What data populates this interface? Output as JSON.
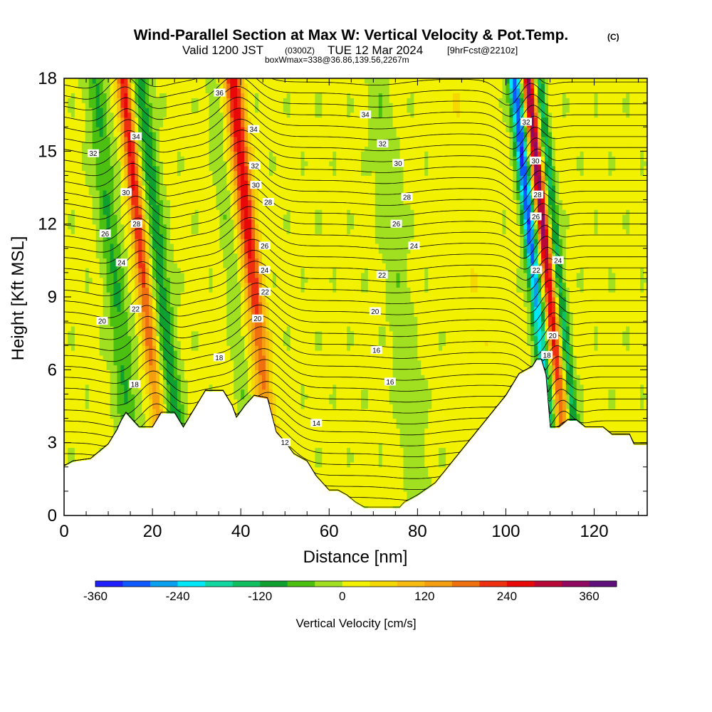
{
  "chart_data": {
    "type": "heatmap",
    "title": "Wind-Parallel Section at Max W: Vertical Velocity & Pot.Temp.",
    "title_mark": "(C)",
    "subtitle_valid": "Valid 1200 JST",
    "subtitle_utc": "(0300Z)",
    "subtitle_date": "TUE 12 Mar 2024",
    "subtitle_fcst": "[9hrFcst@2210z]",
    "subtitle_box": "boxWmax=338@36.86,139.56,2267m",
    "xlabel": "Distance [nm]",
    "ylabel": "Height [Kft MSL]",
    "xlim": [
      0,
      132
    ],
    "ylim": [
      0,
      18
    ],
    "x_ticks": [
      "0",
      "20",
      "40",
      "60",
      "80",
      "100",
      "120"
    ],
    "y_ticks": [
      "0",
      "3",
      "6",
      "9",
      "12",
      "15",
      "18"
    ],
    "colorbar": {
      "label": "Vertical Velocity [cm/s]",
      "ticks": [
        "-360",
        "-240",
        "-120",
        "0",
        "120",
        "240",
        "360"
      ],
      "levels": [
        -360,
        -320,
        -280,
        -240,
        -200,
        -160,
        -120,
        -80,
        -40,
        0,
        40,
        80,
        120,
        160,
        200,
        240,
        280,
        320,
        360,
        400
      ],
      "colors": [
        "#1f1fff",
        "#0f5aff",
        "#0aa0f0",
        "#00e8f8",
        "#10d8a0",
        "#10c060",
        "#10a030",
        "#4cc010",
        "#a0e020",
        "#f2f200",
        "#f5d800",
        "#f8bb10",
        "#f59f10",
        "#f07010",
        "#ee3010",
        "#e80808",
        "#b80838",
        "#900860",
        "#60107a"
      ]
    },
    "terrain_kft": [
      [
        0,
        2.0
      ],
      [
        2,
        2.2
      ],
      [
        6,
        2.3
      ],
      [
        8,
        2.6
      ],
      [
        10,
        2.9
      ],
      [
        12,
        3.5
      ],
      [
        13,
        3.9
      ],
      [
        14,
        4.2
      ],
      [
        17,
        3.6
      ],
      [
        20,
        3.6
      ],
      [
        22,
        4.2
      ],
      [
        25,
        4.2
      ],
      [
        27,
        3.6
      ],
      [
        29,
        4.2
      ],
      [
        30,
        4.5
      ],
      [
        32,
        5.1
      ],
      [
        36,
        5.1
      ],
      [
        38,
        4.5
      ],
      [
        39,
        4.0
      ],
      [
        41,
        4.5
      ],
      [
        43,
        4.9
      ],
      [
        46,
        4.8
      ],
      [
        47,
        4.1
      ],
      [
        48,
        3.4
      ],
      [
        50,
        3.0
      ],
      [
        52,
        2.5
      ],
      [
        55,
        2.2
      ],
      [
        57,
        1.6
      ],
      [
        60,
        1.0
      ],
      [
        62,
        1.0
      ],
      [
        64,
        0.8
      ],
      [
        66,
        0.5
      ],
      [
        68,
        0.3
      ],
      [
        70,
        0.3
      ],
      [
        76,
        0.3
      ],
      [
        77,
        0.5
      ],
      [
        80,
        0.8
      ],
      [
        84,
        1.3
      ],
      [
        88,
        2.2
      ],
      [
        92,
        3.1
      ],
      [
        96,
        4.0
      ],
      [
        100,
        4.9
      ],
      [
        103,
        5.8
      ],
      [
        106,
        6.1
      ],
      [
        107,
        6.4
      ],
      [
        108,
        6.4
      ],
      [
        109,
        5.8
      ],
      [
        110,
        3.6
      ],
      [
        112,
        3.6
      ],
      [
        114,
        3.9
      ],
      [
        116,
        3.9
      ],
      [
        118,
        3.6
      ],
      [
        122,
        3.6
      ],
      [
        124,
        3.3
      ],
      [
        128,
        3.3
      ],
      [
        129,
        2.9
      ],
      [
        132,
        2.9
      ]
    ],
    "updrafts": [
      {
        "x": 20.0,
        "amp": 240,
        "width": 1.6
      },
      {
        "x": 44.8,
        "amp": 260,
        "width": 2.0
      },
      {
        "x": 111.6,
        "amp": 338,
        "width": 1.3
      },
      {
        "x": 39.9,
        "amp": 80,
        "width": 2.0
      },
      {
        "x": 95.0,
        "amp": 25,
        "width": 4.0
      }
    ],
    "downdrafts": [
      {
        "x": 13.5,
        "amp": -90,
        "width": 2.3
      },
      {
        "x": 24.0,
        "amp": -110,
        "width": 2.0
      },
      {
        "x": 40.0,
        "amp": -120,
        "width": 1.8
      },
      {
        "x": 108.5,
        "amp": -330,
        "width": 1.4
      },
      {
        "x": 114.2,
        "amp": -140,
        "width": 1.1
      },
      {
        "x": 77.5,
        "amp": -40,
        "width": 2.5
      }
    ],
    "isentropes_labels": [
      "12",
      "14",
      "16",
      "18",
      "20",
      "22",
      "24",
      "26",
      "28",
      "30",
      "32",
      "34",
      "36"
    ],
    "contour_labels": [
      {
        "text": "36",
        "x": 35.2,
        "y": 17.4
      },
      {
        "text": "34",
        "x": 16.3,
        "y": 15.6
      },
      {
        "text": "34",
        "x": 42.9,
        "y": 15.9
      },
      {
        "text": "34",
        "x": 68.2,
        "y": 16.5
      },
      {
        "text": "32",
        "x": 6.6,
        "y": 14.9
      },
      {
        "text": "32",
        "x": 43.2,
        "y": 14.4
      },
      {
        "text": "32",
        "x": 72.1,
        "y": 15.3
      },
      {
        "text": "32",
        "x": 104.6,
        "y": 16.2
      },
      {
        "text": "30",
        "x": 14.0,
        "y": 13.3
      },
      {
        "text": "30",
        "x": 43.4,
        "y": 13.6
      },
      {
        "text": "30",
        "x": 75.6,
        "y": 14.5
      },
      {
        "text": "30",
        "x": 106.7,
        "y": 14.6
      },
      {
        "text": "28",
        "x": 16.4,
        "y": 12.0
      },
      {
        "text": "28",
        "x": 46.2,
        "y": 12.9
      },
      {
        "text": "28",
        "x": 77.6,
        "y": 13.1
      },
      {
        "text": "28",
        "x": 107.2,
        "y": 13.2
      },
      {
        "text": "26",
        "x": 9.3,
        "y": 11.6
      },
      {
        "text": "26",
        "x": 45.4,
        "y": 11.1
      },
      {
        "text": "26",
        "x": 75.2,
        "y": 12.0
      },
      {
        "text": "26",
        "x": 106.8,
        "y": 12.3
      },
      {
        "text": "24",
        "x": 13.0,
        "y": 10.4
      },
      {
        "text": "24",
        "x": 45.4,
        "y": 10.1
      },
      {
        "text": "24",
        "x": 79.2,
        "y": 11.1
      },
      {
        "text": "24",
        "x": 111.8,
        "y": 10.5
      },
      {
        "text": "22",
        "x": 16.2,
        "y": 8.5
      },
      {
        "text": "22",
        "x": 45.5,
        "y": 9.2
      },
      {
        "text": "22",
        "x": 72.0,
        "y": 9.9
      },
      {
        "text": "22",
        "x": 106.9,
        "y": 10.1
      },
      {
        "text": "20",
        "x": 8.6,
        "y": 8.0
      },
      {
        "text": "20",
        "x": 43.8,
        "y": 8.1
      },
      {
        "text": "20",
        "x": 70.4,
        "y": 8.4
      },
      {
        "text": "20",
        "x": 110.6,
        "y": 7.4
      },
      {
        "text": "18",
        "x": 35.1,
        "y": 6.5
      },
      {
        "text": "18",
        "x": 109.3,
        "y": 6.6
      },
      {
        "text": "18",
        "x": 16.0,
        "y": 5.4
      },
      {
        "text": "16",
        "x": 70.7,
        "y": 6.8
      },
      {
        "text": "16",
        "x": 73.8,
        "y": 5.5
      },
      {
        "text": "14",
        "x": 57.1,
        "y": 3.8
      },
      {
        "text": "12",
        "x": 50.0,
        "y": 3.0
      }
    ]
  }
}
